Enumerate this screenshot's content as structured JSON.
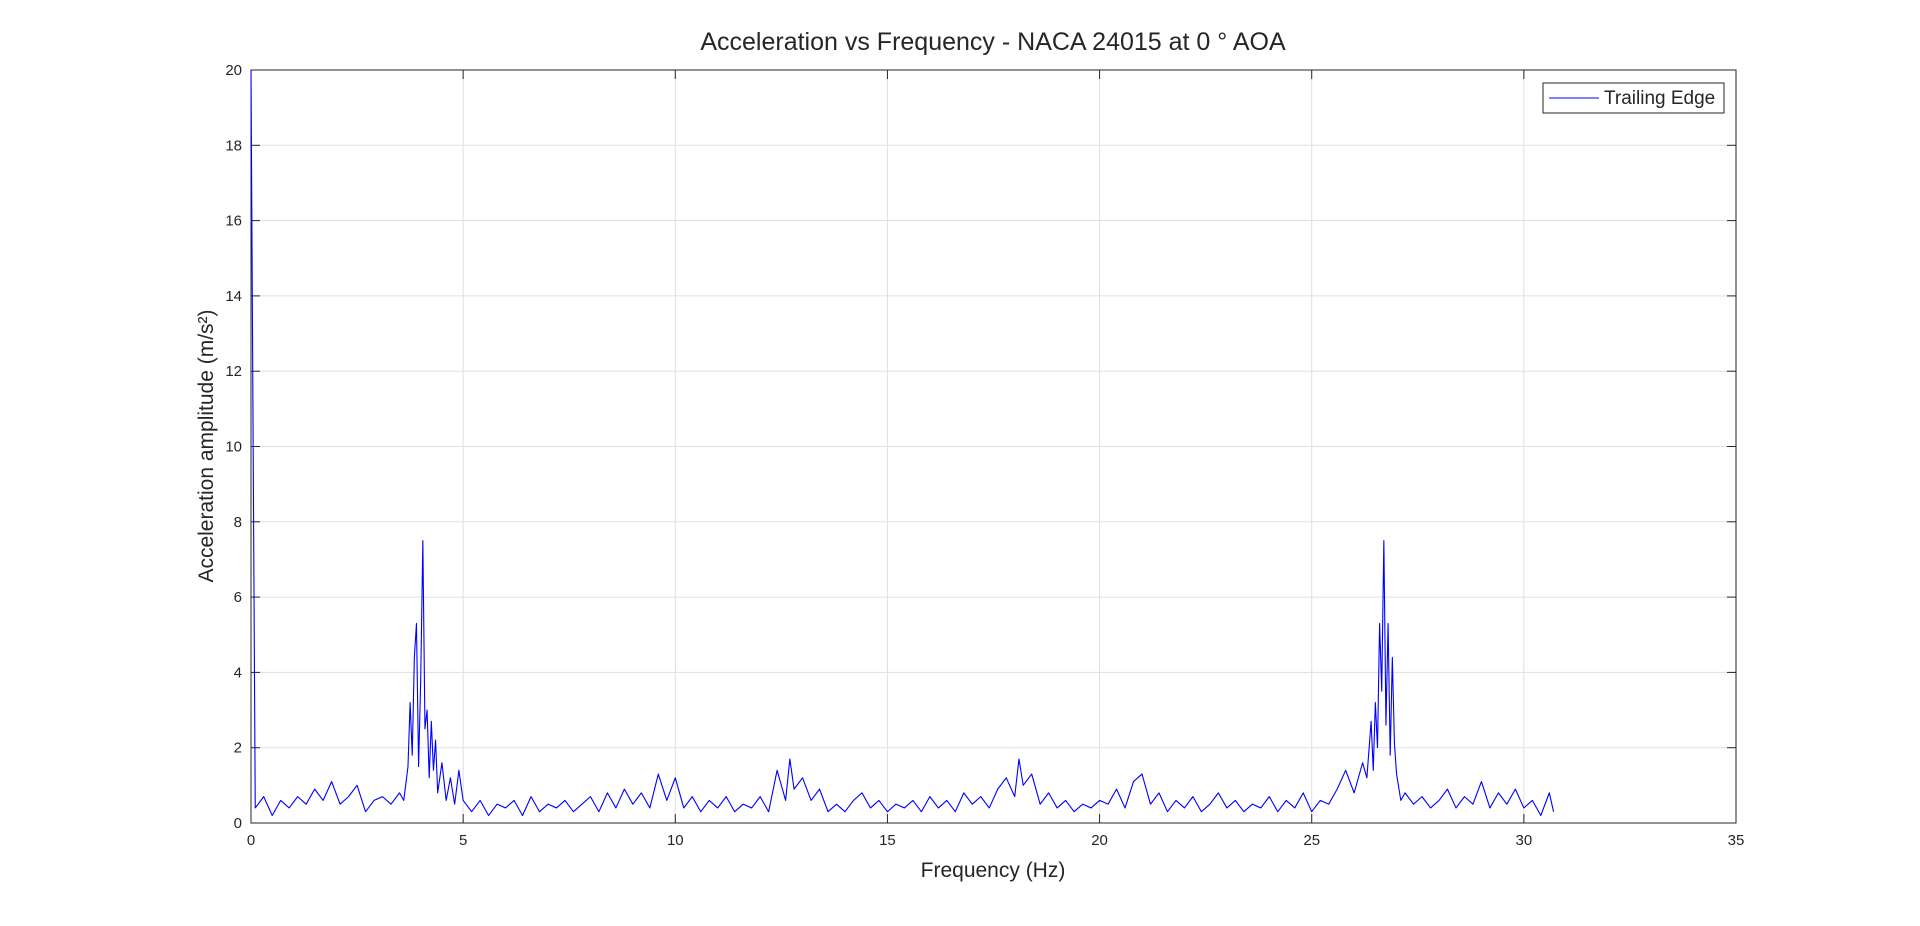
{
  "chart_data": {
    "type": "line",
    "title": "Acceleration vs Frequency - NACA 24015 at 0 ° AOA",
    "xlabel": "Frequency (Hz)",
    "ylabel": "Acceleration amplitude (m/s²)",
    "x": [
      0,
      0.1,
      0.3,
      0.5,
      0.7,
      0.9,
      1.1,
      1.3,
      1.5,
      1.7,
      1.9,
      2.1,
      2.3,
      2.5,
      2.7,
      2.9,
      3.1,
      3.3,
      3.5,
      3.6,
      3.7,
      3.75,
      3.8,
      3.85,
      3.9,
      3.95,
      4.0,
      4.05,
      4.1,
      4.15,
      4.2,
      4.25,
      4.3,
      4.35,
      4.4,
      4.5,
      4.6,
      4.7,
      4.8,
      4.9,
      5.0,
      5.2,
      5.4,
      5.6,
      5.8,
      6.0,
      6.2,
      6.4,
      6.6,
      6.8,
      7.0,
      7.2,
      7.4,
      7.6,
      7.8,
      8.0,
      8.2,
      8.4,
      8.6,
      8.8,
      9.0,
      9.2,
      9.4,
      9.6,
      9.8,
      10.0,
      10.2,
      10.4,
      10.6,
      10.8,
      11.0,
      11.2,
      11.4,
      11.6,
      11.8,
      12.0,
      12.2,
      12.4,
      12.6,
      12.7,
      12.8,
      13.0,
      13.2,
      13.4,
      13.6,
      13.8,
      14.0,
      14.2,
      14.4,
      14.6,
      14.8,
      15.0,
      15.2,
      15.4,
      15.6,
      15.8,
      16.0,
      16.2,
      16.4,
      16.6,
      16.8,
      17.0,
      17.2,
      17.4,
      17.6,
      17.8,
      18.0,
      18.1,
      18.2,
      18.4,
      18.6,
      18.8,
      19.0,
      19.2,
      19.4,
      19.6,
      19.8,
      20.0,
      20.2,
      20.4,
      20.6,
      20.8,
      21.0,
      21.2,
      21.4,
      21.6,
      21.8,
      22.0,
      22.2,
      22.4,
      22.6,
      22.8,
      23.0,
      23.2,
      23.4,
      23.6,
      23.8,
      24.0,
      24.2,
      24.4,
      24.6,
      24.8,
      25.0,
      25.2,
      25.4,
      25.6,
      25.8,
      26.0,
      26.2,
      26.3,
      26.4,
      26.45,
      26.5,
      26.55,
      26.6,
      26.65,
      26.7,
      26.75,
      26.8,
      26.85,
      26.9,
      26.95,
      27.0,
      27.1,
      27.2,
      27.4,
      27.6,
      27.8,
      28.0,
      28.2,
      28.4,
      28.6,
      28.8,
      29.0,
      29.2,
      29.4,
      29.6,
      29.8,
      30.0,
      30.2,
      30.4,
      30.6,
      30.7
    ],
    "series": [
      {
        "name": "Trailing Edge",
        "color": "#0000ff",
        "values": [
          20,
          0.4,
          0.7,
          0.2,
          0.6,
          0.4,
          0.7,
          0.5,
          0.9,
          0.6,
          1.1,
          0.5,
          0.7,
          1.0,
          0.3,
          0.6,
          0.7,
          0.5,
          0.8,
          0.6,
          1.5,
          3.2,
          1.8,
          4.4,
          5.3,
          1.5,
          3.8,
          7.5,
          2.5,
          3.0,
          1.2,
          2.7,
          1.4,
          2.2,
          0.8,
          1.6,
          0.6,
          1.2,
          0.5,
          1.4,
          0.6,
          0.3,
          0.6,
          0.2,
          0.5,
          0.4,
          0.6,
          0.2,
          0.7,
          0.3,
          0.5,
          0.4,
          0.6,
          0.3,
          0.5,
          0.7,
          0.3,
          0.8,
          0.4,
          0.9,
          0.5,
          0.8,
          0.4,
          1.3,
          0.6,
          1.2,
          0.4,
          0.7,
          0.3,
          0.6,
          0.4,
          0.7,
          0.3,
          0.5,
          0.4,
          0.7,
          0.3,
          1.4,
          0.6,
          1.7,
          0.9,
          1.2,
          0.6,
          0.9,
          0.3,
          0.5,
          0.3,
          0.6,
          0.8,
          0.4,
          0.6,
          0.3,
          0.5,
          0.4,
          0.6,
          0.3,
          0.7,
          0.4,
          0.6,
          0.3,
          0.8,
          0.5,
          0.7,
          0.4,
          0.9,
          1.2,
          0.7,
          1.7,
          1.0,
          1.3,
          0.5,
          0.8,
          0.4,
          0.6,
          0.3,
          0.5,
          0.4,
          0.6,
          0.5,
          0.9,
          0.4,
          1.1,
          1.3,
          0.5,
          0.8,
          0.3,
          0.6,
          0.4,
          0.7,
          0.3,
          0.5,
          0.8,
          0.4,
          0.6,
          0.3,
          0.5,
          0.4,
          0.7,
          0.3,
          0.6,
          0.4,
          0.8,
          0.3,
          0.6,
          0.5,
          0.9,
          1.4,
          0.8,
          1.6,
          1.2,
          2.7,
          1.4,
          3.2,
          2.0,
          5.3,
          3.5,
          7.5,
          2.6,
          5.3,
          1.8,
          4.4,
          2.1,
          1.3,
          0.6,
          0.8,
          0.5,
          0.7,
          0.4,
          0.6,
          0.9,
          0.4,
          0.7,
          0.5,
          1.1,
          0.4,
          0.8,
          0.5,
          0.9,
          0.4,
          0.6,
          0.2,
          0.8,
          0.3
        ]
      }
    ],
    "xlim": [
      0,
      35
    ],
    "xticks": [
      0,
      5,
      10,
      15,
      20,
      25,
      30,
      35
    ],
    "ylim": [
      0,
      20
    ],
    "yticks": [
      0,
      2,
      4,
      6,
      8,
      10,
      12,
      14,
      16,
      18,
      20
    ],
    "grid": true,
    "legend": "northeast"
  }
}
